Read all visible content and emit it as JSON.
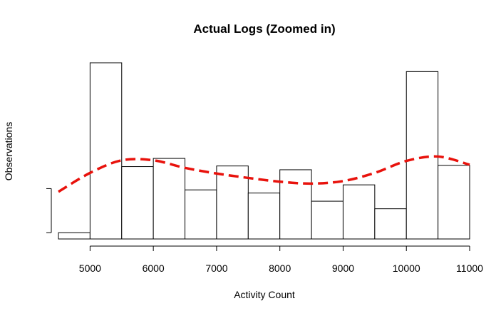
{
  "chart_data": {
    "type": "bar",
    "title": "Actual Logs (Zoomed in)",
    "xlabel": "Activity Count",
    "ylabel": "Observations",
    "xlim": [
      4500,
      11000
    ],
    "ylim": [
      0,
      28
    ],
    "x_ticks": [
      5000,
      6000,
      7000,
      8000,
      9000,
      10000,
      11000
    ],
    "x_tick_labels": [
      "5000",
      "6000",
      "7000",
      "8000",
      "9000",
      "10000",
      "11000"
    ],
    "y_ticks": [
      1,
      8
    ],
    "y_tick_labels": [
      "",
      ""
    ],
    "bin_width": 500,
    "bins": [
      {
        "start": 4500,
        "end": 5000,
        "count": 1
      },
      {
        "start": 5000,
        "end": 5500,
        "count": 28
      },
      {
        "start": 5500,
        "end": 6000,
        "count": 11.5
      },
      {
        "start": 6000,
        "end": 6500,
        "count": 12.8
      },
      {
        "start": 6500,
        "end": 7000,
        "count": 7.8
      },
      {
        "start": 7000,
        "end": 7500,
        "count": 11.6
      },
      {
        "start": 7500,
        "end": 8000,
        "count": 7.3
      },
      {
        "start": 8000,
        "end": 8500,
        "count": 11
      },
      {
        "start": 8500,
        "end": 9000,
        "count": 6
      },
      {
        "start": 9000,
        "end": 9500,
        "count": 8.6
      },
      {
        "start": 9500,
        "end": 10000,
        "count": 4.8
      },
      {
        "start": 10000,
        "end": 10500,
        "count": 26.6
      },
      {
        "start": 10500,
        "end": 11000,
        "count": 11.7
      }
    ],
    "density_curve": {
      "color": "#e8120c",
      "style": "dashed",
      "x": [
        4500,
        5000,
        5500,
        6000,
        6500,
        7000,
        7500,
        8000,
        8500,
        9000,
        9500,
        10000,
        10500,
        11000
      ],
      "y": [
        7.5,
        10.5,
        12.5,
        12.5,
        11.3,
        10.4,
        9.7,
        9.1,
        8.8,
        9.2,
        10.5,
        12.4,
        13.1,
        11.8
      ]
    },
    "grid": false
  }
}
